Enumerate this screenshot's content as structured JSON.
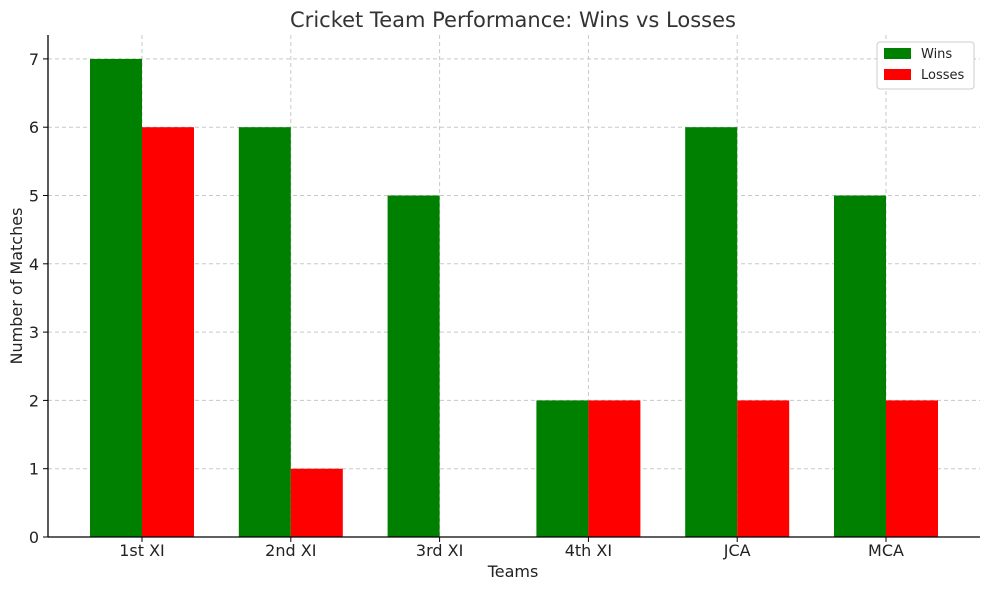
{
  "chart_data": {
    "type": "bar",
    "title": "Cricket Team Performance: Wins vs Losses",
    "xlabel": "Teams",
    "ylabel": "Number of Matches",
    "categories": [
      "1st XI",
      "2nd XI",
      "3rd XI",
      "4th XI",
      "JCA",
      "MCA"
    ],
    "series": [
      {
        "name": "Wins",
        "values": [
          7,
          6,
          5,
          2,
          6,
          5
        ],
        "color": "#008000"
      },
      {
        "name": "Losses",
        "values": [
          6,
          1,
          0,
          2,
          2,
          2
        ],
        "color": "#ff0000"
      }
    ],
    "ylim": [
      0,
      7.35
    ],
    "yticks": [
      0,
      1,
      2,
      3,
      4,
      5,
      6,
      7
    ],
    "grid": true,
    "legend_position": "top-right"
  }
}
